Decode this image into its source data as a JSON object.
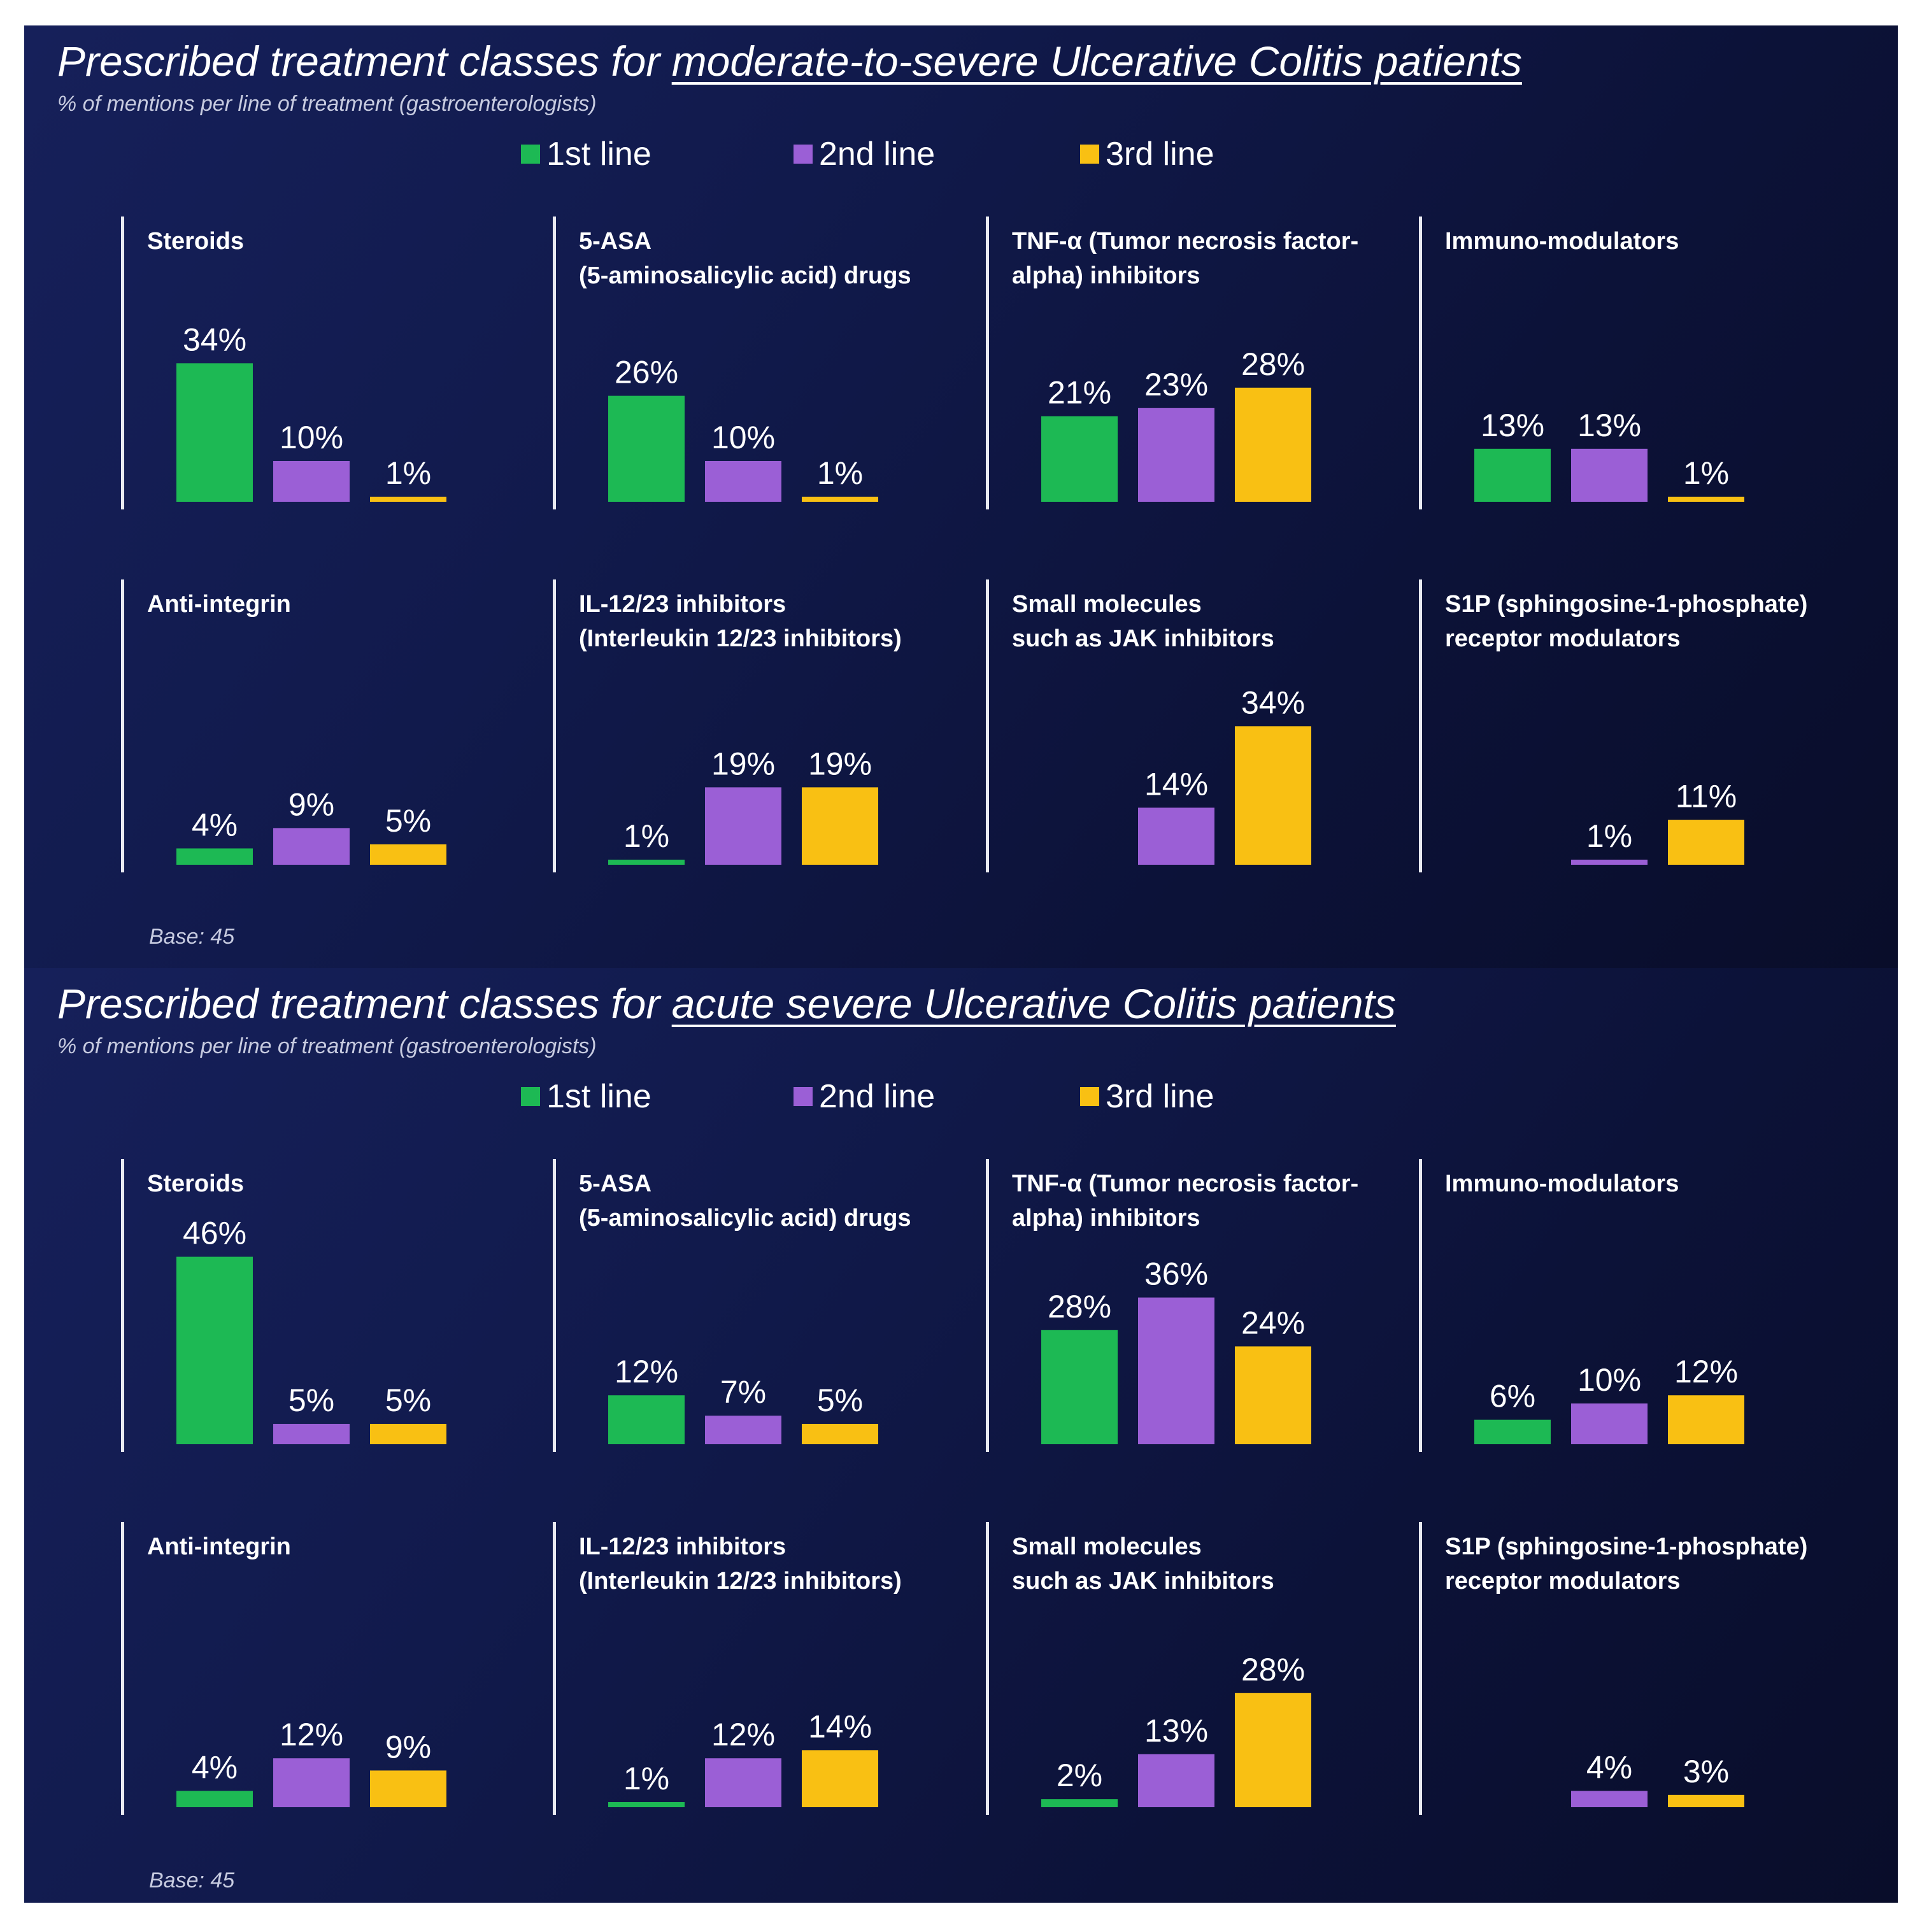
{
  "colors": {
    "first": "#1db954",
    "second": "#9b5fd6",
    "third": "#f9c013"
  },
  "chart_data": [
    {
      "type": "bar",
      "title": "Prescribed treatment classes for moderate-to-severe Ulcerative Colitis patients",
      "title_prefix": "Prescribed treatment classes for ",
      "title_highlight": "moderate-to-severe Ulcerative Colitis patients",
      "subtitle": "% of mentions per line of treatment (gastroenterologists)",
      "legend": [
        "1st line",
        "2nd line",
        "3rd line"
      ],
      "base": "Base: 45",
      "groups": [
        {
          "label_lines": [
            "Steroids"
          ],
          "values": [
            34,
            10,
            1
          ]
        },
        {
          "label_lines": [
            "5-ASA",
            "(5-aminosalicylic acid) drugs"
          ],
          "values": [
            26,
            10,
            1
          ]
        },
        {
          "label_lines": [
            "TNF-α (Tumor necrosis factor-",
            "alpha) inhibitors"
          ],
          "values": [
            21,
            23,
            28
          ]
        },
        {
          "label_lines": [
            "Immuno-modulators"
          ],
          "values": [
            13,
            13,
            1
          ]
        },
        {
          "label_lines": [
            "Anti-integrin"
          ],
          "values": [
            4,
            9,
            5
          ]
        },
        {
          "label_lines": [
            "IL-12/23 inhibitors",
            "(Interleukin 12/23 inhibitors)"
          ],
          "values": [
            1,
            19,
            19
          ]
        },
        {
          "label_lines": [
            "Small molecules",
            "such as JAK inhibitors"
          ],
          "values": [
            null,
            14,
            34
          ]
        },
        {
          "label_lines": [
            "S1P (sphingosine-1-phosphate)",
            "receptor modulators"
          ],
          "values": [
            null,
            1,
            11
          ]
        }
      ]
    },
    {
      "type": "bar",
      "title": "Prescribed treatment classes for acute severe Ulcerative Colitis patients",
      "title_prefix": "Prescribed treatment classes for ",
      "title_highlight": "acute severe Ulcerative Colitis patients",
      "subtitle": "% of mentions per line of treatment (gastroenterologists)",
      "legend": [
        "1st line",
        "2nd line",
        "3rd line"
      ],
      "base": "Base: 45",
      "groups": [
        {
          "label_lines": [
            "Steroids"
          ],
          "values": [
            46,
            5,
            5
          ]
        },
        {
          "label_lines": [
            "5-ASA",
            "(5-aminosalicylic acid) drugs"
          ],
          "values": [
            12,
            7,
            5
          ]
        },
        {
          "label_lines": [
            "TNF-α (Tumor necrosis factor-",
            "alpha) inhibitors"
          ],
          "values": [
            28,
            36,
            24
          ]
        },
        {
          "label_lines": [
            "Immuno-modulators"
          ],
          "values": [
            6,
            10,
            12
          ]
        },
        {
          "label_lines": [
            "Anti-integrin"
          ],
          "values": [
            4,
            12,
            9
          ]
        },
        {
          "label_lines": [
            "IL-12/23 inhibitors",
            "(Interleukin 12/23 inhibitors)"
          ],
          "values": [
            1,
            12,
            14
          ]
        },
        {
          "label_lines": [
            "Small molecules",
            "such as JAK inhibitors"
          ],
          "values": [
            2,
            13,
            28
          ]
        },
        {
          "label_lines": [
            "S1P (sphingosine-1-phosphate)",
            "receptor modulators"
          ],
          "values": [
            null,
            4,
            3
          ]
        }
      ]
    }
  ]
}
